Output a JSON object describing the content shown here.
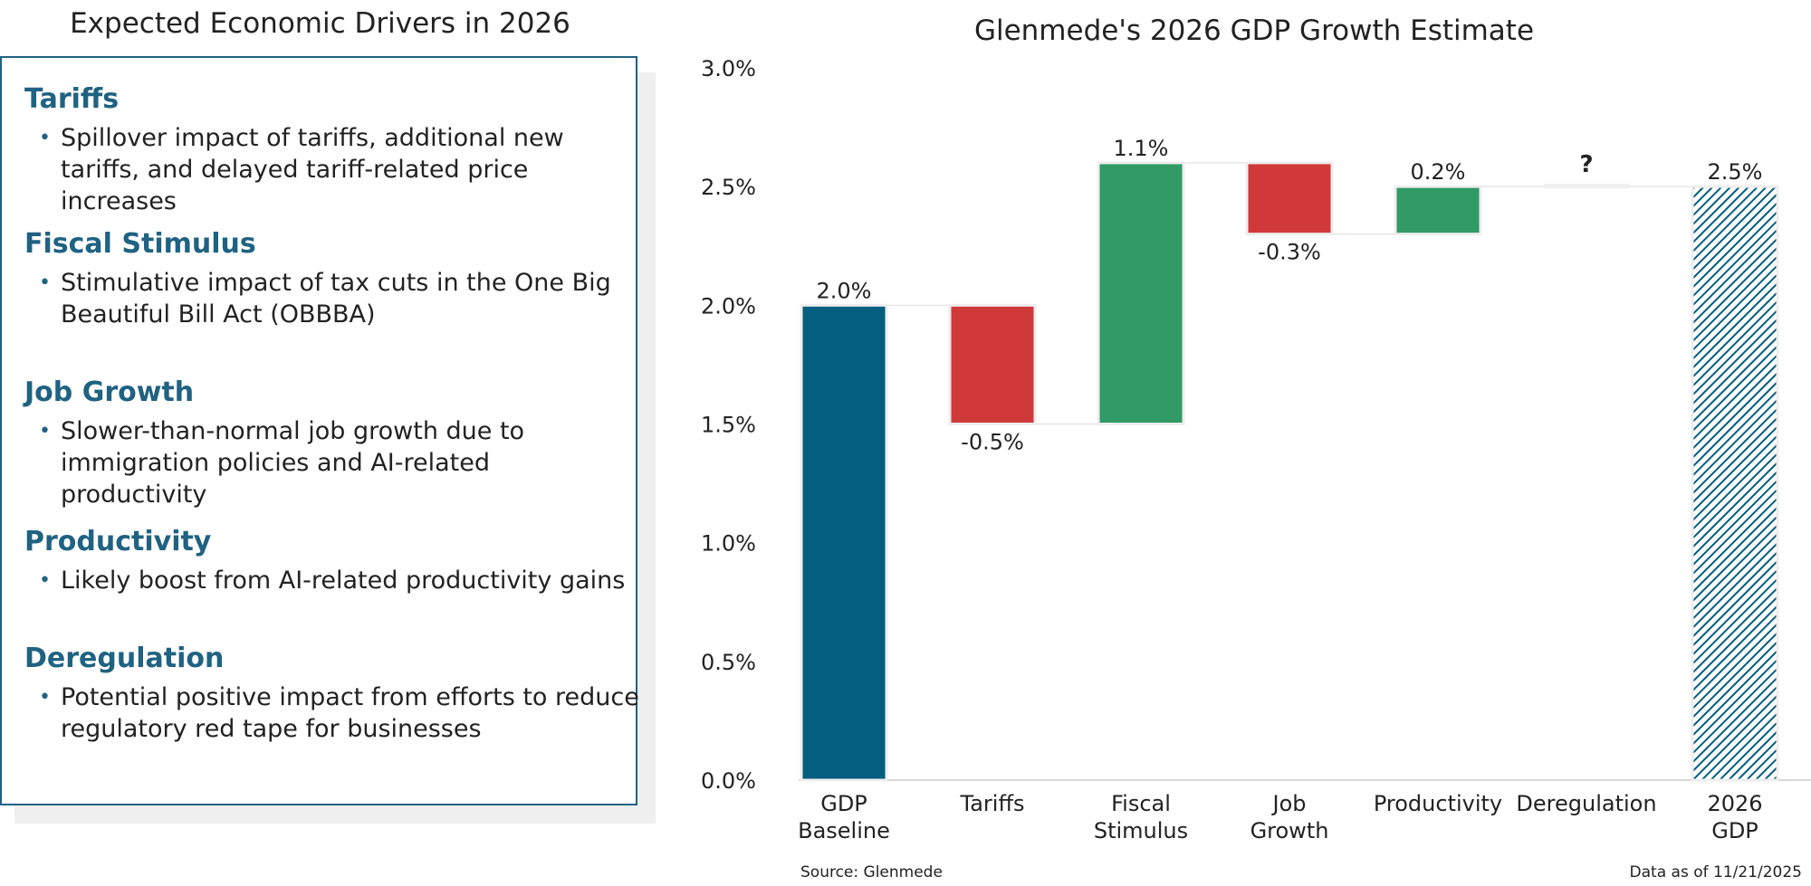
{
  "left_panel": {
    "title": "Expected Economic Drivers in 2026",
    "drivers": [
      {
        "heading": "Tariffs",
        "text": "Spillover impact of tariffs, additional new tariffs, and delayed tariff-related price increases"
      },
      {
        "heading": "Fiscal Stimulus",
        "text": "Stimulative impact of tax cuts in the One Big Beautiful Bill Act (OBBBA)"
      },
      {
        "heading": "Job Growth",
        "text": "Slower-than-normal job growth due to immigration policies and AI-related productivity"
      },
      {
        "heading": "Productivity",
        "text": "Likely boost from AI-related productivity gains"
      },
      {
        "heading": "Deregulation",
        "text": "Potential positive impact from efforts to reduce regulatory red tape for businesses"
      }
    ]
  },
  "chart_data": {
    "type": "waterfall",
    "title": "Glenmede's 2026 GDP Growth Estimate",
    "ylim": [
      0,
      3.0
    ],
    "yticks": [
      "0.0%",
      "0.5%",
      "1.0%",
      "1.5%",
      "2.0%",
      "2.5%",
      "3.0%"
    ],
    "ytick_values": [
      0,
      0.5,
      1.0,
      1.5,
      2.0,
      2.5,
      3.0
    ],
    "categories": [
      [
        "GDP",
        "Baseline"
      ],
      [
        "Tariffs"
      ],
      [
        "Fiscal",
        "Stimulus"
      ],
      [
        "Job",
        "Growth"
      ],
      [
        "Productivity"
      ],
      [
        "Deregulation"
      ],
      [
        "2026",
        "GDP"
      ]
    ],
    "bars": [
      {
        "start": 0,
        "end": 2.0,
        "label": "2.0%",
        "kind": "total"
      },
      {
        "start": 2.0,
        "end": 1.5,
        "label": "-0.5%",
        "kind": "negative"
      },
      {
        "start": 1.5,
        "end": 2.6,
        "label": "1.1%",
        "kind": "positive"
      },
      {
        "start": 2.6,
        "end": 2.3,
        "label": "-0.3%",
        "kind": "negative"
      },
      {
        "start": 2.3,
        "end": 2.5,
        "label": "0.2%",
        "kind": "positive"
      },
      {
        "start": 2.5,
        "end": 2.5,
        "label": "?",
        "kind": "unknown"
      },
      {
        "start": 0,
        "end": 2.5,
        "label": "2.5%",
        "kind": "total-hatched"
      }
    ],
    "source": "Source: Glenmede",
    "data_as_of": "Data as of 11/21/2025"
  },
  "colors": {
    "total": "#035e7f",
    "positive": "#319a66",
    "negative": "#d0393a",
    "heading": "#1f6282",
    "unknown": "#f0f0f0"
  }
}
